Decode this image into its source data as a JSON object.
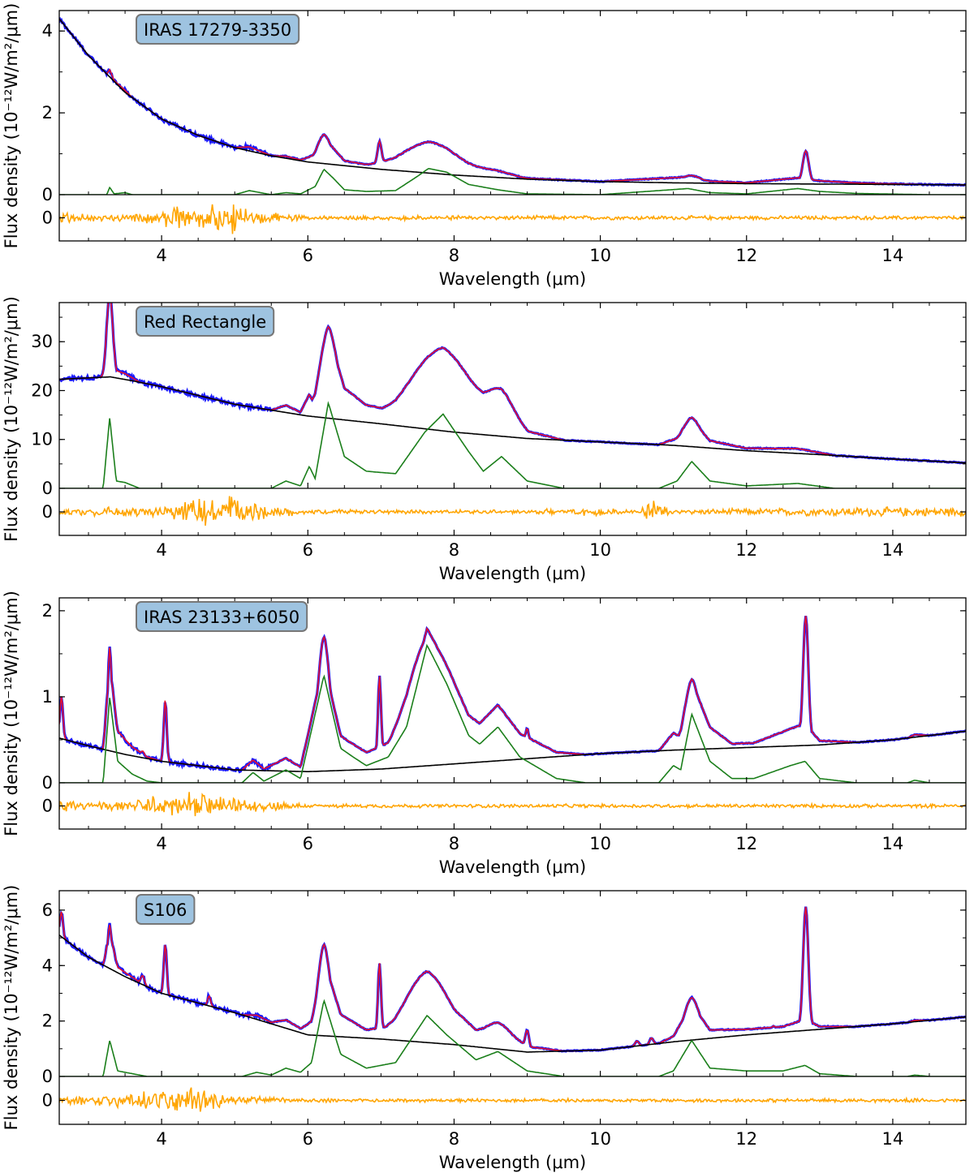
{
  "colors": {
    "observed": "#1a1aff",
    "model": "#e8102a",
    "continuum": "#000000",
    "pah": "#1b7f1b",
    "residual": "#ffa500",
    "label_box": "#9ec3e0"
  },
  "chart_data": [
    {
      "type": "line",
      "object_label": "IRAS 17279-3350",
      "xlabel": "Wavelength (μm)",
      "ylabel": "Flux density (10⁻¹²W/m²/μm)",
      "xlim": [
        2.6,
        15
      ],
      "ylim": [
        0,
        4.5
      ],
      "xticks": [
        4,
        6,
        8,
        10,
        12,
        14
      ],
      "yticks": [
        0,
        2,
        4
      ],
      "residual_yticks": [
        0
      ],
      "residual_ylim": [
        -0.45,
        0.45
      ],
      "continuum": [
        [
          2.6,
          4.3
        ],
        [
          3,
          3.4
        ],
        [
          3.5,
          2.5
        ],
        [
          4,
          1.85
        ],
        [
          4.5,
          1.45
        ],
        [
          5,
          1.15
        ],
        [
          5.5,
          0.95
        ],
        [
          6,
          0.8
        ],
        [
          7,
          0.62
        ],
        [
          8,
          0.48
        ],
        [
          9,
          0.38
        ],
        [
          10,
          0.32
        ],
        [
          11,
          0.29
        ],
        [
          12,
          0.27
        ],
        [
          13,
          0.26
        ],
        [
          14,
          0.25
        ],
        [
          15,
          0.24
        ]
      ],
      "pah": [
        [
          2.6,
          0
        ],
        [
          3.25,
          0
        ],
        [
          3.29,
          0.18
        ],
        [
          3.35,
          0.02
        ],
        [
          3.5,
          0.05
        ],
        [
          3.6,
          0
        ],
        [
          5,
          0
        ],
        [
          5.2,
          0.1
        ],
        [
          5.5,
          0
        ],
        [
          5.7,
          0.05
        ],
        [
          5.9,
          0.02
        ],
        [
          6.1,
          0.2
        ],
        [
          6.22,
          0.62
        ],
        [
          6.35,
          0.4
        ],
        [
          6.5,
          0.12
        ],
        [
          6.8,
          0.08
        ],
        [
          7.2,
          0.1
        ],
        [
          7.5,
          0.45
        ],
        [
          7.65,
          0.64
        ],
        [
          7.9,
          0.55
        ],
        [
          8.2,
          0.25
        ],
        [
          8.6,
          0.12
        ],
        [
          9,
          0.02
        ],
        [
          10,
          0
        ],
        [
          11.2,
          0.15
        ],
        [
          11.5,
          0.05
        ],
        [
          12,
          0.02
        ],
        [
          12.7,
          0.15
        ],
        [
          13,
          0.08
        ],
        [
          13.5,
          0.03
        ],
        [
          14.5,
          0
        ]
      ],
      "peaks": [
        [
          6.22,
          0.55,
          0.09
        ],
        [
          6.98,
          0.58,
          0.025
        ],
        [
          7.65,
          0.6,
          0.4
        ],
        [
          8.6,
          0.1,
          0.2
        ],
        [
          11.25,
          0.15,
          0.12
        ],
        [
          12.81,
          0.85,
          0.04
        ]
      ],
      "residual_amp": [
        [
          2.6,
          0.12
        ],
        [
          3.5,
          0.08
        ],
        [
          4,
          0.2
        ],
        [
          4.5,
          0.28
        ],
        [
          5,
          0.35
        ],
        [
          5.2,
          0.15
        ],
        [
          6,
          0.05
        ],
        [
          15,
          0.04
        ]
      ]
    },
    {
      "type": "line",
      "object_label": "Red Rectangle",
      "xlabel": "Wavelength (μm)",
      "ylabel": "Flux density (10⁻¹²W/m²/μm)",
      "xlim": [
        2.6,
        15
      ],
      "ylim": [
        0,
        38
      ],
      "xticks": [
        4,
        6,
        8,
        10,
        12,
        14
      ],
      "yticks": [
        0,
        10,
        20,
        30
      ],
      "residual_yticks": [
        0
      ],
      "residual_ylim": [
        -4.5,
        4.5
      ],
      "continuum": [
        [
          2.6,
          22.3
        ],
        [
          3,
          22.6
        ],
        [
          3.3,
          22.8
        ],
        [
          3.6,
          22.0
        ],
        [
          4,
          20.8
        ],
        [
          5,
          17.2
        ],
        [
          6,
          14.8
        ],
        [
          7,
          13.2
        ],
        [
          8,
          11.5
        ],
        [
          9,
          10.2
        ],
        [
          10,
          9.5
        ],
        [
          11,
          8.8
        ],
        [
          12,
          7.7
        ],
        [
          13,
          6.9
        ],
        [
          14,
          6.0
        ],
        [
          15,
          5.2
        ]
      ],
      "pah": [
        [
          2.6,
          0
        ],
        [
          3.2,
          0
        ],
        [
          3.29,
          14.5
        ],
        [
          3.38,
          1.5
        ],
        [
          3.5,
          1.2
        ],
        [
          3.7,
          0
        ],
        [
          5.5,
          0
        ],
        [
          5.7,
          1.5
        ],
        [
          5.9,
          0.5
        ],
        [
          6.02,
          4.5
        ],
        [
          6.1,
          2
        ],
        [
          6.28,
          17.5
        ],
        [
          6.5,
          6.5
        ],
        [
          6.8,
          3.5
        ],
        [
          7.2,
          3
        ],
        [
          7.6,
          11.5
        ],
        [
          7.85,
          15.2
        ],
        [
          8.2,
          7.5
        ],
        [
          8.4,
          3.5
        ],
        [
          8.65,
          6.5
        ],
        [
          9,
          1.5
        ],
        [
          9.5,
          0
        ],
        [
          10.8,
          0
        ],
        [
          11.05,
          1.5
        ],
        [
          11.25,
          5.5
        ],
        [
          11.5,
          1.5
        ],
        [
          12,
          0.5
        ],
        [
          12.7,
          1
        ],
        [
          13.2,
          0
        ],
        [
          15,
          0
        ]
      ],
      "peaks": [
        [
          3.29,
          14,
          0.04
        ],
        [
          6.28,
          14,
          0.12
        ],
        [
          7.85,
          13,
          0.45
        ],
        [
          8.65,
          5.5,
          0.18
        ],
        [
          11.25,
          4.5,
          0.12
        ]
      ],
      "residual_amp": [
        [
          2.6,
          0.8
        ],
        [
          4,
          1.2
        ],
        [
          4.5,
          3
        ],
        [
          5,
          3.5
        ],
        [
          5.4,
          1.5
        ],
        [
          6,
          0.5
        ],
        [
          9,
          0.4
        ],
        [
          9.5,
          1
        ],
        [
          10.5,
          0.5
        ],
        [
          10.75,
          2.5
        ],
        [
          11,
          0.5
        ],
        [
          13.5,
          1
        ],
        [
          15,
          1
        ]
      ]
    },
    {
      "type": "line",
      "object_label": "IRAS 23133+6050",
      "xlabel": "Wavelength (μm)",
      "ylabel": "Flux density (10⁻¹²W/m²/μm)",
      "xlim": [
        2.6,
        15
      ],
      "ylim": [
        0,
        2.15
      ],
      "xticks": [
        4,
        6,
        8,
        10,
        12,
        14
      ],
      "yticks": [
        0,
        1,
        2
      ],
      "residual_yticks": [
        0
      ],
      "residual_ylim": [
        -0.22,
        0.22
      ],
      "continuum": [
        [
          2.6,
          0.52
        ],
        [
          3,
          0.43
        ],
        [
          3.5,
          0.33
        ],
        [
          4,
          0.25
        ],
        [
          5,
          0.15
        ],
        [
          6,
          0.13
        ],
        [
          7,
          0.16
        ],
        [
          8,
          0.22
        ],
        [
          9,
          0.28
        ],
        [
          10,
          0.34
        ],
        [
          11,
          0.38
        ],
        [
          12,
          0.41
        ],
        [
          13,
          0.44
        ],
        [
          14,
          0.5
        ],
        [
          15,
          0.6
        ]
      ],
      "pah": [
        [
          2.6,
          0
        ],
        [
          3.2,
          0
        ],
        [
          3.29,
          1.0
        ],
        [
          3.4,
          0.25
        ],
        [
          3.6,
          0.1
        ],
        [
          3.8,
          0.02
        ],
        [
          4.0,
          0
        ],
        [
          5.1,
          0
        ],
        [
          5.25,
          0.12
        ],
        [
          5.4,
          0.02
        ],
        [
          5.7,
          0.15
        ],
        [
          5.9,
          0.05
        ],
        [
          6.22,
          1.25
        ],
        [
          6.45,
          0.4
        ],
        [
          6.62,
          0.3
        ],
        [
          6.8,
          0.2
        ],
        [
          7.1,
          0.3
        ],
        [
          7.35,
          0.65
        ],
        [
          7.63,
          1.6
        ],
        [
          7.9,
          1.15
        ],
        [
          8.2,
          0.55
        ],
        [
          8.35,
          0.45
        ],
        [
          8.6,
          0.65
        ],
        [
          8.9,
          0.3
        ],
        [
          9.4,
          0.05
        ],
        [
          9.8,
          0
        ],
        [
          10.8,
          0
        ],
        [
          11.0,
          0.2
        ],
        [
          11.1,
          0.15
        ],
        [
          11.25,
          0.8
        ],
        [
          11.5,
          0.25
        ],
        [
          11.8,
          0.05
        ],
        [
          12.1,
          0.05
        ],
        [
          12.6,
          0.2
        ],
        [
          12.8,
          0.25
        ],
        [
          13.0,
          0.05
        ],
        [
          13.5,
          0
        ],
        [
          14.2,
          0
        ],
        [
          14.3,
          0.03
        ],
        [
          14.5,
          0
        ],
        [
          15,
          0
        ]
      ],
      "peaks": [
        [
          2.63,
          0.55,
          0.02
        ],
        [
          3.29,
          0.95,
          0.025
        ],
        [
          3.74,
          0.07,
          0.025
        ],
        [
          4.05,
          0.8,
          0.02
        ],
        [
          6.22,
          1.25,
          0.08
        ],
        [
          6.62,
          0.15,
          0.06
        ],
        [
          6.98,
          1.0,
          0.02
        ],
        [
          7.63,
          1.05,
          0.3
        ],
        [
          8.6,
          0.32,
          0.2
        ],
        [
          9.0,
          0.25,
          0.025
        ],
        [
          11.25,
          0.6,
          0.1
        ],
        [
          12.81,
          1.58,
          0.035
        ]
      ],
      "residual_amp": [
        [
          2.6,
          0.06
        ],
        [
          3.5,
          0.05
        ],
        [
          4,
          0.12
        ],
        [
          4.5,
          0.14
        ],
        [
          5,
          0.07
        ],
        [
          5.7,
          0.05
        ],
        [
          6,
          0.02
        ],
        [
          15,
          0.02
        ]
      ]
    },
    {
      "type": "line",
      "object_label": "S106",
      "xlabel": "Wavelength (μm)",
      "ylabel": "Flux density (10⁻¹²W/m²/μm)",
      "xlim": [
        2.6,
        15
      ],
      "ylim": [
        0,
        6.7
      ],
      "xticks": [
        4,
        6,
        8,
        10,
        12,
        14
      ],
      "yticks": [
        0,
        2,
        4,
        6
      ],
      "residual_yticks": [
        0
      ],
      "residual_ylim": [
        -0.7,
        0.7
      ],
      "continuum": [
        [
          2.6,
          5.1
        ],
        [
          3,
          4.3
        ],
        [
          3.5,
          3.6
        ],
        [
          4,
          3.0
        ],
        [
          5,
          2.3
        ],
        [
          6,
          1.5
        ],
        [
          7,
          1.35
        ],
        [
          8,
          1.15
        ],
        [
          9,
          0.88
        ],
        [
          10,
          0.95
        ],
        [
          11,
          1.25
        ],
        [
          12,
          1.5
        ],
        [
          13,
          1.7
        ],
        [
          14,
          1.9
        ],
        [
          15,
          2.15
        ]
      ],
      "pah": [
        [
          2.6,
          0
        ],
        [
          3.2,
          0
        ],
        [
          3.29,
          1.3
        ],
        [
          3.4,
          0.2
        ],
        [
          3.6,
          0.1
        ],
        [
          3.8,
          0
        ],
        [
          5.1,
          0
        ],
        [
          5.3,
          0.15
        ],
        [
          5.5,
          0.05
        ],
        [
          5.7,
          0.3
        ],
        [
          5.9,
          0.15
        ],
        [
          6.05,
          0.5
        ],
        [
          6.22,
          2.75
        ],
        [
          6.45,
          0.8
        ],
        [
          6.8,
          0.3
        ],
        [
          7.2,
          0.5
        ],
        [
          7.63,
          2.2
        ],
        [
          7.9,
          1.5
        ],
        [
          8.3,
          0.6
        ],
        [
          8.6,
          0.9
        ],
        [
          9,
          0.2
        ],
        [
          9.5,
          0
        ],
        [
          10.8,
          0
        ],
        [
          11.0,
          0.2
        ],
        [
          11.25,
          1.3
        ],
        [
          11.5,
          0.3
        ],
        [
          12,
          0.2
        ],
        [
          12.5,
          0.2
        ],
        [
          12.8,
          0.4
        ],
        [
          13.0,
          0.1
        ],
        [
          13.5,
          0
        ],
        [
          14.2,
          0
        ],
        [
          14.3,
          0.05
        ],
        [
          14.5,
          0
        ],
        [
          15,
          0
        ]
      ],
      "peaks": [
        [
          2.63,
          1.0,
          0.02
        ],
        [
          3.29,
          1.25,
          0.025
        ],
        [
          3.74,
          0.35,
          0.025
        ],
        [
          4.05,
          2.0,
          0.02
        ],
        [
          4.65,
          0.4,
          0.02
        ],
        [
          6.22,
          2.6,
          0.08
        ],
        [
          6.98,
          2.7,
          0.02
        ],
        [
          7.63,
          2.0,
          0.3
        ],
        [
          8.6,
          0.7,
          0.2
        ],
        [
          9.0,
          0.7,
          0.025
        ],
        [
          10.5,
          0.2,
          0.025
        ],
        [
          10.7,
          0.25,
          0.025
        ],
        [
          11.25,
          1.2,
          0.1
        ],
        [
          12.37,
          0.2,
          0.025
        ],
        [
          12.81,
          4.8,
          0.035
        ]
      ],
      "residual_amp": [
        [
          2.6,
          0.2
        ],
        [
          3,
          0.15
        ],
        [
          4,
          0.3
        ],
        [
          4.5,
          0.45
        ],
        [
          5,
          0.15
        ],
        [
          6,
          0.06
        ],
        [
          15,
          0.06
        ]
      ]
    }
  ]
}
